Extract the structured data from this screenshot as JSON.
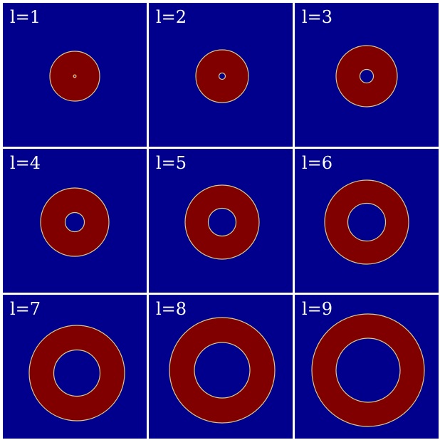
{
  "colors": {
    "background": "#01008c",
    "ring_fill": "#800000",
    "ring_edge": "#d9c98a",
    "separator": "#ffffff"
  },
  "panels": [
    {
      "label": "l=1"
    },
    {
      "label": "l=2"
    },
    {
      "label": "l=3"
    },
    {
      "label": "l=4"
    },
    {
      "label": "l=5"
    },
    {
      "label": "l=6"
    },
    {
      "label": "l=7"
    },
    {
      "label": "l=8"
    },
    {
      "label": "l=9"
    }
  ]
}
